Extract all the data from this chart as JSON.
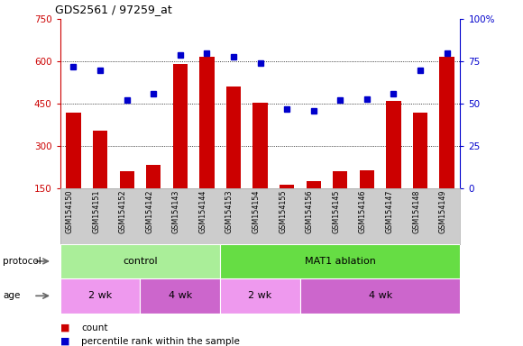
{
  "title": "GDS2561 / 97259_at",
  "samples": [
    "GSM154150",
    "GSM154151",
    "GSM154152",
    "GSM154142",
    "GSM154143",
    "GSM154144",
    "GSM154153",
    "GSM154154",
    "GSM154155",
    "GSM154156",
    "GSM154145",
    "GSM154146",
    "GSM154147",
    "GSM154148",
    "GSM154149"
  ],
  "counts": [
    420,
    355,
    210,
    235,
    590,
    615,
    510,
    455,
    165,
    175,
    210,
    215,
    460,
    420,
    615
  ],
  "percentiles": [
    72,
    70,
    52,
    56,
    79,
    80,
    78,
    74,
    47,
    46,
    52,
    53,
    56,
    70,
    80
  ],
  "ylim_left": [
    150,
    750
  ],
  "ylim_right": [
    0,
    100
  ],
  "yticks_left": [
    150,
    300,
    450,
    600,
    750
  ],
  "yticks_right": [
    0,
    25,
    50,
    75,
    100
  ],
  "bar_color": "#cc0000",
  "dot_color": "#0000cc",
  "protocol_control_count": 6,
  "protocol_ablation_count": 9,
  "age_groups": [
    {
      "label": "2 wk",
      "start": 0,
      "end": 3
    },
    {
      "label": "4 wk",
      "start": 3,
      "end": 6
    },
    {
      "label": "2 wk",
      "start": 6,
      "end": 9
    },
    {
      "label": "4 wk",
      "start": 9,
      "end": 15
    }
  ],
  "legend_count_label": "count",
  "legend_pct_label": "percentile rank within the sample",
  "control_color": "#aaee99",
  "ablation_color": "#66dd44",
  "age_2wk_color": "#ee99ee",
  "age_4wk_color": "#cc66cc",
  "left_axis_color": "#cc0000",
  "right_axis_color": "#0000cc",
  "gray_bg": "#cccccc"
}
